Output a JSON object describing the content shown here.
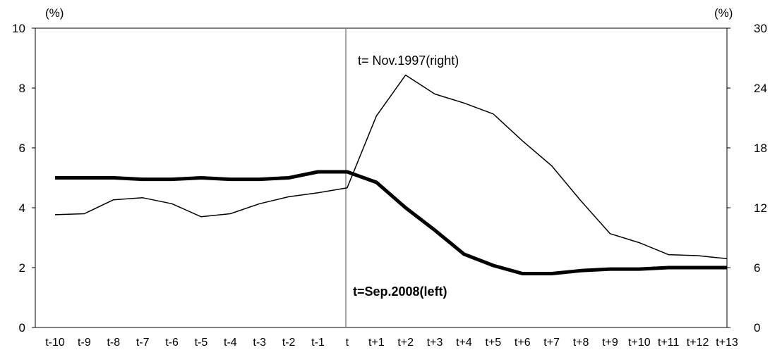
{
  "chart_data": {
    "type": "line",
    "categories": [
      "t-10",
      "t-9",
      "t-8",
      "t-7",
      "t-6",
      "t-5",
      "t-4",
      "t-3",
      "t-2",
      "t-1",
      "t",
      "t+1",
      "t+2",
      "t+3",
      "t+4",
      "t+5",
      "t+6",
      "t+7",
      "t+8",
      "t+9",
      "t+10",
      "t+11",
      "t+12",
      "t+13"
    ],
    "left_axis": {
      "unit": "(%)",
      "ylim": [
        0,
        10
      ],
      "ticks": [
        0,
        2,
        4,
        6,
        8,
        10
      ]
    },
    "right_axis": {
      "unit": "(%)",
      "ylim": [
        0,
        30
      ],
      "ticks": [
        0,
        6,
        12,
        18,
        24,
        30
      ]
    },
    "series": [
      {
        "name": "t=Sep.2008(left)",
        "axis": "left",
        "values": [
          5.0,
          5.0,
          5.0,
          4.95,
          4.95,
          5.0,
          4.95,
          4.95,
          5.0,
          5.2,
          5.2,
          4.85,
          4.0,
          3.25,
          2.45,
          2.07,
          1.8,
          1.8,
          1.9,
          1.95,
          1.95,
          2.0,
          2.0,
          2.0
        ],
        "color": "#000000",
        "style": "thick"
      },
      {
        "name": "t= Nov.1997(right)",
        "axis": "right",
        "values": [
          11.3,
          11.4,
          12.8,
          13.0,
          12.4,
          11.1,
          11.4,
          12.4,
          13.1,
          13.5,
          14.0,
          21.2,
          25.3,
          23.4,
          22.5,
          21.4,
          18.7,
          16.2,
          12.7,
          9.4,
          8.5,
          7.3,
          7.2,
          6.9
        ],
        "color": "#000000",
        "style": "thin"
      }
    ],
    "marker_line_at": "t",
    "grid": false
  }
}
